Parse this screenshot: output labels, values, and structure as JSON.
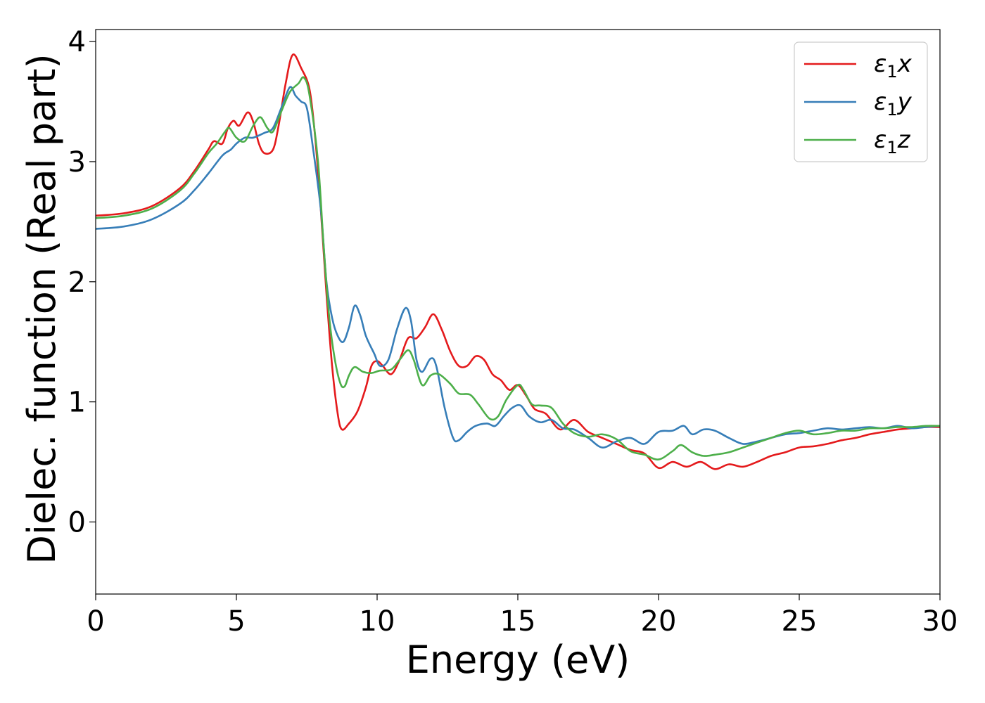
{
  "chart_data": {
    "type": "line",
    "title": "",
    "xlabel": "Energy (eV)",
    "ylabel": "Dielec. function (Real part)",
    "xlim": [
      0,
      30
    ],
    "ylim": [
      -0.6,
      4.1
    ],
    "xticks": [
      0,
      5,
      10,
      15,
      20,
      25,
      30
    ],
    "yticks": [
      0,
      1,
      2,
      3,
      4
    ],
    "grid": false,
    "legend_position": "top-right",
    "series": [
      {
        "name": "ε1x",
        "legend_base": "ε",
        "legend_sub": "1",
        "legend_var": "x",
        "color": "#e41a1c",
        "points": [
          [
            0,
            2.55
          ],
          [
            1,
            2.57
          ],
          [
            2,
            2.63
          ],
          [
            3,
            2.78
          ],
          [
            3.5,
            2.92
          ],
          [
            4,
            3.1
          ],
          [
            4.2,
            3.17
          ],
          [
            4.5,
            3.15
          ],
          [
            4.7,
            3.28
          ],
          [
            4.9,
            3.34
          ],
          [
            5.1,
            3.3
          ],
          [
            5.4,
            3.41
          ],
          [
            5.6,
            3.33
          ],
          [
            5.8,
            3.15
          ],
          [
            6.0,
            3.07
          ],
          [
            6.3,
            3.1
          ],
          [
            6.5,
            3.3
          ],
          [
            6.75,
            3.65
          ],
          [
            7.0,
            3.89
          ],
          [
            7.3,
            3.78
          ],
          [
            7.6,
            3.6
          ],
          [
            7.8,
            3.2
          ],
          [
            8.0,
            2.6
          ],
          [
            8.2,
            1.9
          ],
          [
            8.4,
            1.3
          ],
          [
            8.6,
            0.9
          ],
          [
            8.75,
            0.77
          ],
          [
            9.0,
            0.82
          ],
          [
            9.3,
            0.92
          ],
          [
            9.6,
            1.12
          ],
          [
            9.8,
            1.3
          ],
          [
            10.0,
            1.34
          ],
          [
            10.2,
            1.3
          ],
          [
            10.5,
            1.23
          ],
          [
            10.8,
            1.35
          ],
          [
            11.1,
            1.53
          ],
          [
            11.4,
            1.53
          ],
          [
            11.7,
            1.62
          ],
          [
            12.0,
            1.73
          ],
          [
            12.3,
            1.6
          ],
          [
            12.6,
            1.42
          ],
          [
            12.9,
            1.3
          ],
          [
            13.2,
            1.3
          ],
          [
            13.5,
            1.38
          ],
          [
            13.8,
            1.35
          ],
          [
            14.1,
            1.23
          ],
          [
            14.4,
            1.18
          ],
          [
            14.7,
            1.1
          ],
          [
            15.0,
            1.14
          ],
          [
            15.3,
            1.05
          ],
          [
            15.6,
            0.94
          ],
          [
            16.0,
            0.9
          ],
          [
            16.5,
            0.77
          ],
          [
            17.0,
            0.85
          ],
          [
            17.5,
            0.75
          ],
          [
            18.0,
            0.7
          ],
          [
            18.5,
            0.65
          ],
          [
            19.0,
            0.6
          ],
          [
            19.5,
            0.57
          ],
          [
            20.0,
            0.45
          ],
          [
            20.5,
            0.5
          ],
          [
            21.0,
            0.46
          ],
          [
            21.5,
            0.5
          ],
          [
            22.0,
            0.44
          ],
          [
            22.5,
            0.48
          ],
          [
            23.0,
            0.46
          ],
          [
            23.5,
            0.5
          ],
          [
            24.0,
            0.55
          ],
          [
            24.5,
            0.58
          ],
          [
            25.0,
            0.62
          ],
          [
            25.5,
            0.63
          ],
          [
            26.0,
            0.65
          ],
          [
            26.5,
            0.68
          ],
          [
            27.0,
            0.7
          ],
          [
            27.5,
            0.73
          ],
          [
            28.0,
            0.75
          ],
          [
            28.5,
            0.77
          ],
          [
            29.0,
            0.78
          ],
          [
            29.5,
            0.79
          ],
          [
            30.0,
            0.79
          ]
        ]
      },
      {
        "name": "ε1y",
        "legend_base": "ε",
        "legend_sub": "1",
        "legend_var": "y",
        "color": "#377eb8",
        "points": [
          [
            0,
            2.44
          ],
          [
            1,
            2.46
          ],
          [
            2,
            2.52
          ],
          [
            3,
            2.65
          ],
          [
            3.5,
            2.76
          ],
          [
            4,
            2.9
          ],
          [
            4.5,
            3.05
          ],
          [
            4.8,
            3.1
          ],
          [
            5.0,
            3.15
          ],
          [
            5.3,
            3.2
          ],
          [
            5.6,
            3.2
          ],
          [
            6.0,
            3.24
          ],
          [
            6.3,
            3.28
          ],
          [
            6.6,
            3.45
          ],
          [
            6.9,
            3.62
          ],
          [
            7.1,
            3.55
          ],
          [
            7.3,
            3.5
          ],
          [
            7.5,
            3.45
          ],
          [
            7.7,
            3.15
          ],
          [
            8.0,
            2.6
          ],
          [
            8.2,
            2.0
          ],
          [
            8.4,
            1.7
          ],
          [
            8.6,
            1.55
          ],
          [
            8.8,
            1.5
          ],
          [
            9.0,
            1.62
          ],
          [
            9.2,
            1.8
          ],
          [
            9.4,
            1.72
          ],
          [
            9.6,
            1.55
          ],
          [
            9.9,
            1.4
          ],
          [
            10.1,
            1.3
          ],
          [
            10.4,
            1.35
          ],
          [
            10.7,
            1.6
          ],
          [
            11.0,
            1.78
          ],
          [
            11.2,
            1.68
          ],
          [
            11.4,
            1.35
          ],
          [
            11.6,
            1.25
          ],
          [
            11.9,
            1.36
          ],
          [
            12.1,
            1.3
          ],
          [
            12.4,
            0.95
          ],
          [
            12.7,
            0.7
          ],
          [
            12.9,
            0.68
          ],
          [
            13.2,
            0.75
          ],
          [
            13.5,
            0.8
          ],
          [
            13.9,
            0.82
          ],
          [
            14.2,
            0.8
          ],
          [
            14.5,
            0.88
          ],
          [
            14.8,
            0.95
          ],
          [
            15.1,
            0.97
          ],
          [
            15.4,
            0.88
          ],
          [
            15.8,
            0.83
          ],
          [
            16.2,
            0.85
          ],
          [
            16.6,
            0.78
          ],
          [
            17.0,
            0.77
          ],
          [
            17.5,
            0.7
          ],
          [
            18.0,
            0.62
          ],
          [
            18.5,
            0.67
          ],
          [
            19.0,
            0.7
          ],
          [
            19.5,
            0.65
          ],
          [
            20.0,
            0.75
          ],
          [
            20.5,
            0.76
          ],
          [
            20.9,
            0.8
          ],
          [
            21.2,
            0.73
          ],
          [
            21.6,
            0.77
          ],
          [
            22.0,
            0.76
          ],
          [
            22.5,
            0.7
          ],
          [
            23.0,
            0.65
          ],
          [
            23.5,
            0.67
          ],
          [
            24.0,
            0.7
          ],
          [
            24.5,
            0.73
          ],
          [
            25.0,
            0.74
          ],
          [
            25.5,
            0.76
          ],
          [
            26.0,
            0.78
          ],
          [
            26.5,
            0.77
          ],
          [
            27.0,
            0.78
          ],
          [
            27.5,
            0.79
          ],
          [
            28.0,
            0.78
          ],
          [
            28.5,
            0.8
          ],
          [
            29.0,
            0.78
          ],
          [
            29.5,
            0.79
          ],
          [
            30.0,
            0.8
          ]
        ]
      },
      {
        "name": "ε1z",
        "legend_base": "ε",
        "legend_sub": "1",
        "legend_var": "z",
        "color": "#4daf4a",
        "points": [
          [
            0,
            2.53
          ],
          [
            1,
            2.55
          ],
          [
            2,
            2.61
          ],
          [
            3,
            2.76
          ],
          [
            3.5,
            2.9
          ],
          [
            4,
            3.07
          ],
          [
            4.3,
            3.15
          ],
          [
            4.6,
            3.25
          ],
          [
            4.75,
            3.28
          ],
          [
            5.0,
            3.2
          ],
          [
            5.3,
            3.17
          ],
          [
            5.6,
            3.3
          ],
          [
            5.85,
            3.37
          ],
          [
            6.1,
            3.28
          ],
          [
            6.3,
            3.25
          ],
          [
            6.6,
            3.42
          ],
          [
            6.9,
            3.58
          ],
          [
            7.2,
            3.65
          ],
          [
            7.4,
            3.7
          ],
          [
            7.6,
            3.55
          ],
          [
            7.9,
            3.0
          ],
          [
            8.1,
            2.3
          ],
          [
            8.3,
            1.7
          ],
          [
            8.5,
            1.35
          ],
          [
            8.7,
            1.15
          ],
          [
            8.85,
            1.13
          ],
          [
            9.0,
            1.22
          ],
          [
            9.2,
            1.29
          ],
          [
            9.5,
            1.25
          ],
          [
            9.8,
            1.24
          ],
          [
            10.1,
            1.26
          ],
          [
            10.5,
            1.27
          ],
          [
            10.8,
            1.35
          ],
          [
            11.1,
            1.43
          ],
          [
            11.3,
            1.35
          ],
          [
            11.6,
            1.14
          ],
          [
            11.9,
            1.22
          ],
          [
            12.2,
            1.23
          ],
          [
            12.6,
            1.15
          ],
          [
            12.9,
            1.07
          ],
          [
            13.3,
            1.06
          ],
          [
            13.6,
            0.98
          ],
          [
            14.0,
            0.86
          ],
          [
            14.3,
            0.88
          ],
          [
            14.6,
            1.02
          ],
          [
            15.0,
            1.14
          ],
          [
            15.2,
            1.1
          ],
          [
            15.5,
            0.98
          ],
          [
            15.8,
            0.97
          ],
          [
            16.2,
            0.95
          ],
          [
            16.6,
            0.82
          ],
          [
            17.0,
            0.74
          ],
          [
            17.5,
            0.71
          ],
          [
            18.0,
            0.73
          ],
          [
            18.5,
            0.69
          ],
          [
            19.0,
            0.59
          ],
          [
            19.5,
            0.56
          ],
          [
            20.0,
            0.52
          ],
          [
            20.5,
            0.59
          ],
          [
            20.8,
            0.64
          ],
          [
            21.2,
            0.58
          ],
          [
            21.6,
            0.55
          ],
          [
            22.0,
            0.56
          ],
          [
            22.5,
            0.58
          ],
          [
            23.0,
            0.62
          ],
          [
            23.5,
            0.66
          ],
          [
            24.0,
            0.7
          ],
          [
            24.5,
            0.74
          ],
          [
            25.0,
            0.76
          ],
          [
            25.5,
            0.73
          ],
          [
            26.0,
            0.74
          ],
          [
            26.5,
            0.76
          ],
          [
            27.0,
            0.76
          ],
          [
            27.5,
            0.78
          ],
          [
            28.0,
            0.78
          ],
          [
            28.5,
            0.79
          ],
          [
            29.0,
            0.79
          ],
          [
            29.5,
            0.8
          ],
          [
            30.0,
            0.8
          ]
        ]
      }
    ]
  }
}
